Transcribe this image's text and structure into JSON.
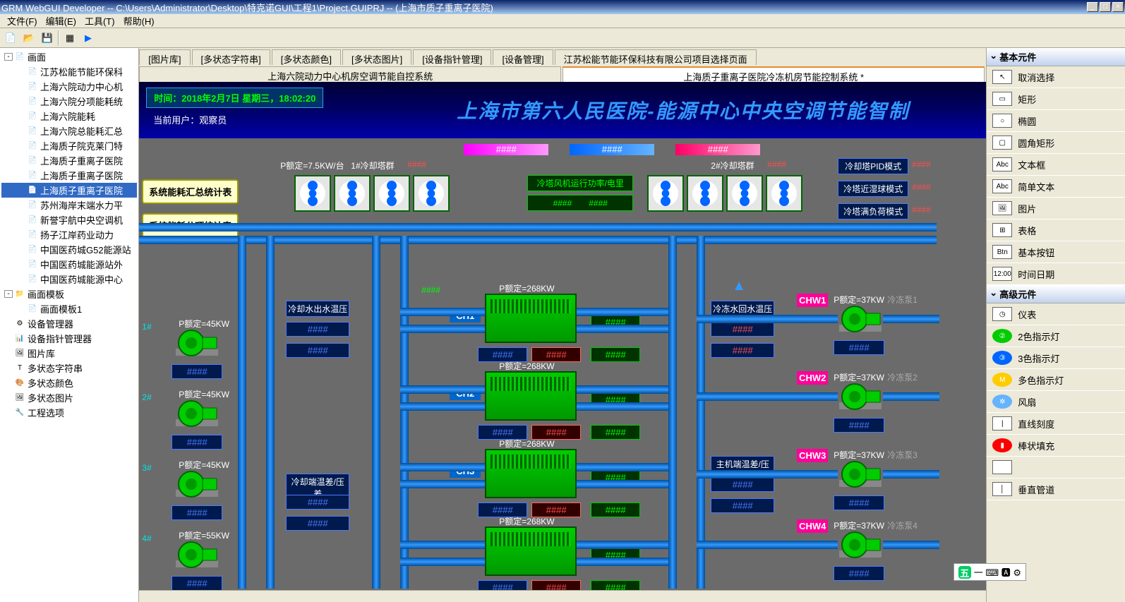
{
  "title": "GRM WebGUI Developer -- C:\\Users\\Administrator\\Desktop\\特克诺GUI\\工程1\\Project.GUIPRJ -- (上海市质子重离子医院)",
  "menu": [
    "文件(F)",
    "编辑(E)",
    "工具(T)",
    "帮助(H)"
  ],
  "tree": [
    {
      "l": 0,
      "e": "-",
      "icon": "📄",
      "t": "画面"
    },
    {
      "l": 1,
      "icon": "📄",
      "t": "江苏松能节能环保科"
    },
    {
      "l": 1,
      "icon": "📄",
      "t": "上海六院动力中心机"
    },
    {
      "l": 1,
      "icon": "📄",
      "t": "上海六院分项能耗统"
    },
    {
      "l": 1,
      "icon": "📄",
      "t": "上海六院能耗"
    },
    {
      "l": 1,
      "icon": "📄",
      "t": "上海六院总能耗汇总"
    },
    {
      "l": 1,
      "icon": "📄",
      "t": "上海质子院克莱门特"
    },
    {
      "l": 1,
      "icon": "📄",
      "t": "上海质子重离子医院"
    },
    {
      "l": 1,
      "icon": "📄",
      "t": "上海质子重离子医院"
    },
    {
      "l": 1,
      "icon": "📄",
      "t": "上海质子重离子医院",
      "sel": true
    },
    {
      "l": 1,
      "icon": "📄",
      "t": "苏州海岸末端水力平"
    },
    {
      "l": 1,
      "icon": "📄",
      "t": "新誉宇航中央空调机"
    },
    {
      "l": 1,
      "icon": "📄",
      "t": "扬子江岸药业动力"
    },
    {
      "l": 1,
      "icon": "📄",
      "t": "中国医药城G52能源站"
    },
    {
      "l": 1,
      "icon": "📄",
      "t": "中国医药城能源站外"
    },
    {
      "l": 1,
      "icon": "📄",
      "t": "中国医药城能源中心"
    },
    {
      "l": 0,
      "e": "-",
      "icon": "📁",
      "t": "画面模板"
    },
    {
      "l": 1,
      "icon": "📄",
      "t": "画面模板1"
    },
    {
      "l": 0,
      "icon": "⚙",
      "t": "设备管理器"
    },
    {
      "l": 0,
      "icon": "📊",
      "t": "设备指针管理器"
    },
    {
      "l": 0,
      "icon": "🖼",
      "t": "图片库"
    },
    {
      "l": 0,
      "icon": "T",
      "t": "多状态字符串"
    },
    {
      "l": 0,
      "icon": "🎨",
      "t": "多状态颜色"
    },
    {
      "l": 0,
      "icon": "🖼",
      "t": "多状态图片"
    },
    {
      "l": 0,
      "icon": "🔧",
      "t": "工程选项"
    }
  ],
  "tabs1": [
    "[图片库]",
    "[多状态字符串]",
    "[多状态颜色]",
    "[多状态图片]",
    "[设备指针管理]",
    "[设备管理]",
    "江苏松能节能环保科技有限公司项目选择页面"
  ],
  "tabs2": [
    {
      "t": "上海六院动力中心机房空调节能自控系统",
      "a": false
    },
    {
      "t": "上海质子重离子医院冷冻机房节能控制系统    *",
      "a": true
    }
  ],
  "canvas": {
    "time": "时间：2018年2月7日 星期三，18:02:20",
    "user_label": "当前用户：",
    "user": "观察员",
    "bigtitle": "上海市第六人民医院-能源中心中央空调节能智制",
    "statbtns": [
      "系统能耗汇总统计表",
      "系统能耗分项统计表"
    ],
    "hash": "####",
    "tower_label_1": "P额定=7.5KW/台",
    "group1": "1#冷却塔群",
    "group2": "2#冷却塔群",
    "tower_power": "冷塔风机运行功率/电里",
    "mode1": "冷却塔PID模式",
    "mode2": "冷塔近湿球模式",
    "mode3": "冷塔满负荷模式",
    "pump_p45": "P额定=45KW",
    "pump_p55": "P额定=55KW",
    "pump_p37": "P额定=37KW",
    "chiller_p268": "P额定=268KW",
    "cool_out": "冷却水出水温压",
    "cool_diff": "冷却端温差/压差",
    "freeze_in": "冷冻水回水温压",
    "main_diff": "主机端温差/压差",
    "ch": [
      "CH1",
      "CH2",
      "CH3"
    ],
    "chw": [
      "CHW1",
      "CHW2",
      "CHW3",
      "CHW4"
    ],
    "freeze_pump": [
      "冷冻泵1",
      "冷冻泵2",
      "冷冻泵3",
      "冷冻泵4"
    ],
    "pump_num": [
      "1#",
      "2#",
      "3#",
      "4#"
    ]
  },
  "rpanel": {
    "g1": "基本元件",
    "items1": [
      {
        "i": "↖",
        "t": "取消选择"
      },
      {
        "i": "▭",
        "t": "矩形"
      },
      {
        "i": "○",
        "t": "椭圆"
      },
      {
        "i": "▢",
        "t": "圆角矩形"
      },
      {
        "i": "Abc",
        "t": "文本框"
      },
      {
        "i": "Abc",
        "t": "简单文本"
      },
      {
        "i": "🖼",
        "t": "图片"
      },
      {
        "i": "⊞",
        "t": "表格"
      },
      {
        "i": "Btn",
        "t": "基本按钮"
      },
      {
        "i": "12:00",
        "t": "时间日期"
      }
    ],
    "g2": "高级元件",
    "items2": [
      {
        "i": "◷",
        "t": "仪表"
      },
      {
        "i": "②",
        "t": "2色指示灯",
        "c": "#00cc00"
      },
      {
        "i": "③",
        "t": "3色指示灯",
        "c": "#0066ff"
      },
      {
        "i": "M",
        "t": "多色指示灯",
        "c": "#ffcc00"
      },
      {
        "i": "✲",
        "t": "风扇",
        "c": "#66b3ff"
      },
      {
        "i": "|",
        "t": "直线刻度"
      },
      {
        "i": "▮",
        "t": "棒状填充",
        "c": "#ff0000"
      },
      {
        "i": "",
        "t": ""
      },
      {
        "i": "│",
        "t": "垂直管道"
      }
    ]
  },
  "ime": "五"
}
